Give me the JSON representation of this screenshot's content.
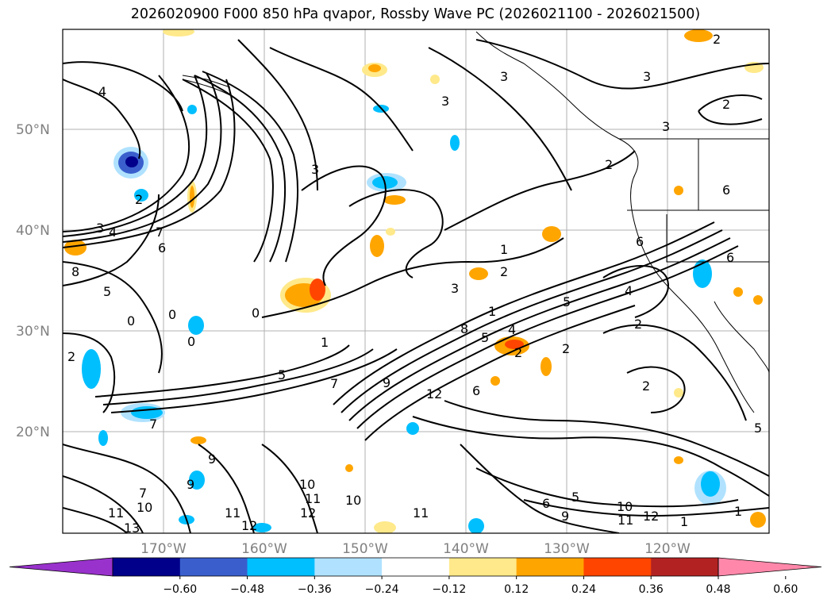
{
  "title": "2026020900 F000 850 hPa qvapor, Rossby Wave PC (2026021100 - 2026021500)",
  "lat_labels": [
    "50°N",
    "40°N",
    "30°N",
    "20°N"
  ],
  "lon_labels": [
    "170°W",
    "160°W",
    "150°W",
    "140°W",
    "130°W",
    "120°W"
  ],
  "colorbar": {
    "colors": [
      "#9932cc",
      "#00008b",
      "#3a5fcd",
      "#00bfff",
      "#b0e2ff",
      "#ffffff",
      "#ffe98a",
      "#ffa500",
      "#ff4500",
      "#b22222",
      "#ff88aa"
    ],
    "labels": [
      "−0.60",
      "−0.48",
      "−0.36",
      "−0.24",
      "−0.12",
      "0.12",
      "0.24",
      "0.36",
      "0.48",
      "0.60"
    ]
  },
  "contour_labels": [
    "4",
    "3",
    "4",
    "2",
    "7",
    "6",
    "8",
    "5",
    "0",
    "0",
    "0",
    "2",
    "7",
    "9",
    "1",
    "0",
    "3",
    "5",
    "7",
    "9",
    "10",
    "11",
    "12",
    "13",
    "11",
    "10",
    "11",
    "12",
    "10",
    "11",
    "7",
    "9",
    "12",
    "6",
    "8",
    "5",
    "6",
    "5",
    "9",
    "10",
    "11",
    "12",
    "1",
    "1",
    "3",
    "2",
    "4",
    "2",
    "2",
    "5",
    "6",
    "3",
    "3",
    "3",
    "2",
    "2",
    "3",
    "6",
    "6",
    "4",
    "2",
    "2",
    "5",
    "1",
    "1",
    "2"
  ]
}
